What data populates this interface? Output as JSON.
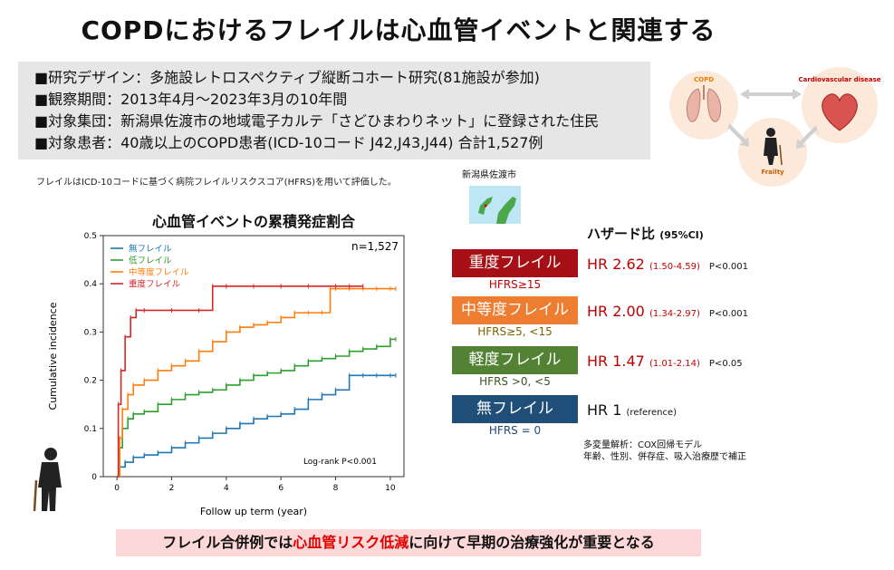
{
  "title": "COPDにおけるフレイルは心血管イベントと関連する",
  "info": [
    "■研究デザイン：多施設レトロスペクティブ縦断コホート研究(81施設が参加)",
    "■観察期間：2013年4月～2023年3月の10年間",
    "■対象集団：新潟県佐渡市の地域電子カルテ「さどひまわりネット」に登録された住民",
    "■対象患者：40歳以上のCOPD患者(ICD-10コード J42,J43,J44) 合計1,527例"
  ],
  "note": "フレイルはICD-10コードに基づく病院フレイルリスクスコア(HFRS)を用いて評価した。",
  "map_label": "新潟県佐渡市",
  "diagram": {
    "copd": "COPD",
    "cvd": "Cardiovascular disease",
    "frailty": "Frailty"
  },
  "colors": {
    "none": "#1f77b4",
    "low": "#2ca02c",
    "mid": "#ff7f0e",
    "severe": "#d62728",
    "box_severe": "#a50f15",
    "box_mid": "#ed7d31",
    "box_mild": "#548235",
    "box_none": "#1f4e79"
  },
  "chart_data": {
    "type": "line",
    "title": "心血管イベントの累積発症割合",
    "xlabel": "Follow up term (year)",
    "ylabel": "Cumulative incidence",
    "xlim": [
      -0.5,
      10.5
    ],
    "ylim": [
      0,
      0.5
    ],
    "xticks": [
      0,
      2,
      4,
      6,
      8,
      10
    ],
    "yticks": [
      0.0,
      0.1,
      0.2,
      0.3,
      0.4,
      0.5
    ],
    "annotation_n": "n=1,527",
    "annotation_p": "Log-rank P<0.001",
    "legend_position": "top-left",
    "series": [
      {
        "name": "無フレイル",
        "color": "#1f77b4",
        "x": [
          0,
          0.1,
          0.3,
          0.6,
          1.0,
          1.5,
          2.0,
          2.5,
          3.0,
          3.5,
          4.0,
          4.5,
          5.0,
          5.5,
          6.0,
          6.5,
          7.0,
          7.5,
          8.0,
          8.5,
          9.0,
          9.5,
          10.0,
          10.2
        ],
        "y": [
          0,
          0.02,
          0.03,
          0.04,
          0.045,
          0.05,
          0.06,
          0.07,
          0.08,
          0.09,
          0.1,
          0.11,
          0.12,
          0.125,
          0.13,
          0.14,
          0.16,
          0.17,
          0.18,
          0.21,
          0.21,
          0.21,
          0.21,
          0.21
        ]
      },
      {
        "name": "低フレイル",
        "color": "#2ca02c",
        "x": [
          0,
          0.1,
          0.2,
          0.4,
          0.6,
          1.0,
          1.5,
          2.0,
          2.5,
          3.0,
          3.5,
          4.0,
          4.5,
          5.0,
          5.5,
          6.0,
          6.5,
          7.0,
          7.5,
          8.0,
          8.5,
          9.0,
          9.5,
          10.0,
          10.2
        ],
        "y": [
          0,
          0.06,
          0.1,
          0.12,
          0.13,
          0.135,
          0.15,
          0.16,
          0.17,
          0.175,
          0.18,
          0.19,
          0.2,
          0.21,
          0.215,
          0.22,
          0.23,
          0.24,
          0.245,
          0.25,
          0.26,
          0.265,
          0.27,
          0.285,
          0.285
        ]
      },
      {
        "name": "中等度フレイル",
        "color": "#ff7f0e",
        "x": [
          0,
          0.1,
          0.2,
          0.4,
          0.6,
          1.0,
          1.5,
          2.0,
          2.5,
          3.0,
          3.5,
          4.0,
          4.5,
          5.0,
          5.5,
          6.0,
          6.5,
          7.0,
          7.5,
          7.8,
          8.0,
          8.5,
          9.0,
          9.5,
          10.0,
          10.2
        ],
        "y": [
          0,
          0.08,
          0.14,
          0.17,
          0.19,
          0.2,
          0.22,
          0.23,
          0.24,
          0.26,
          0.28,
          0.3,
          0.31,
          0.315,
          0.32,
          0.33,
          0.34,
          0.34,
          0.34,
          0.39,
          0.39,
          0.39,
          0.39,
          0.39,
          0.39,
          0.39
        ]
      },
      {
        "name": "重度フレイル",
        "color": "#d62728",
        "x": [
          0,
          0.05,
          0.15,
          0.3,
          0.5,
          0.7,
          1.0,
          2.0,
          3.0,
          3.5,
          4.0,
          5.0,
          6.0,
          7.0,
          8.0,
          8.5,
          9.0
        ],
        "y": [
          0,
          0.15,
          0.22,
          0.29,
          0.33,
          0.345,
          0.345,
          0.345,
          0.345,
          0.395,
          0.395,
          0.395,
          0.395,
          0.395,
          0.395,
          0.395,
          0.395
        ]
      }
    ]
  },
  "hazard": {
    "title": "ハザード比",
    "title_ci": "(95%CI)",
    "rows": [
      {
        "label": "重度フレイル",
        "hfrs": "HFRS≥15",
        "hr": "HR 2.62",
        "ci": "(1.50-4.59)",
        "p": "P<0.001",
        "box_color": "#a50f15",
        "hfrs_color": "#c00000",
        "hr_color": "#c00000"
      },
      {
        "label": "中等度フレイル",
        "hfrs": "HFRS≥5, <15",
        "hr": "HR 2.00",
        "ci": "(1.34-2.97)",
        "p": "P<0.001",
        "box_color": "#ed7d31",
        "hfrs_color": "#7f6000",
        "hr_color": "#c00000"
      },
      {
        "label": "軽度フレイル",
        "hfrs": "HFRS >0, <5",
        "hr": "HR 1.47",
        "ci": "(1.01-2.14)",
        "p": "P<0.05",
        "box_color": "#548235",
        "hfrs_color": "#375623",
        "hr_color": "#c00000"
      },
      {
        "label": "無フレイル",
        "hfrs": "HFRS = 0",
        "hr": "HR 1",
        "ci": "(reference)",
        "p": "",
        "box_color": "#1f4e79",
        "hfrs_color": "#1f4e79",
        "hr_color": "#111111"
      }
    ],
    "cox_line1": "多変量解析：COX回帰モデル",
    "cox_line2": "年齢、性別、併存症、吸入治療歴で補正"
  },
  "bottom": {
    "pre": "フレイル合併例では",
    "highlight": "心血管リスク低減",
    "post": "に向けて早期の治療強化が重要となる"
  }
}
